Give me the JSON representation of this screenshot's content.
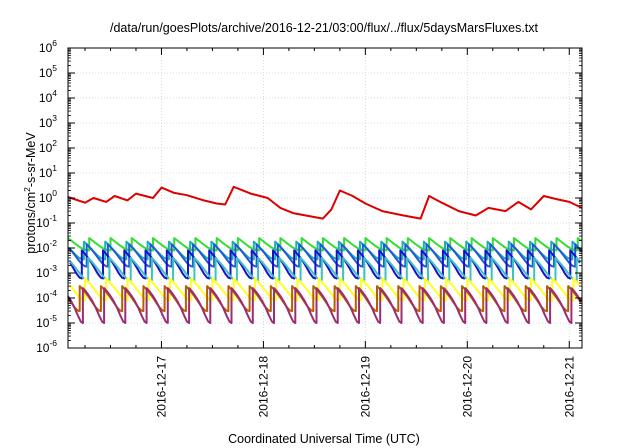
{
  "chart_data": {
    "type": "line",
    "title": "/data/run/goesPlots/archive/2016-12-21/03:00/flux/../flux/5daysMarsFluxes.txt",
    "xlabel": "Coordinated Universal Time (UTC)",
    "ylabel": {
      "a": "protons/cm",
      "sup": "2",
      "b": "-s-sr-MeV"
    },
    "yscale": "log",
    "ylim": [
      1e-06,
      1000000.0
    ],
    "y_ticks": [
      {
        "base": "10",
        "exp": "-6",
        "value": 1e-06
      },
      {
        "base": "10",
        "exp": "-5",
        "value": 1e-05
      },
      {
        "base": "10",
        "exp": "-4",
        "value": 0.0001
      },
      {
        "base": "10",
        "exp": "-3",
        "value": 0.001
      },
      {
        "base": "10",
        "exp": "-2",
        "value": 0.01
      },
      {
        "base": "10",
        "exp": "-1",
        "value": 0.1
      },
      {
        "base": "10",
        "exp": "0",
        "value": 1
      },
      {
        "base": "10",
        "exp": "1",
        "value": 10
      },
      {
        "base": "10",
        "exp": "2",
        "value": 100
      },
      {
        "base": "10",
        "exp": "3",
        "value": 1000
      },
      {
        "base": "10",
        "exp": "4",
        "value": 10000
      },
      {
        "base": "10",
        "exp": "5",
        "value": 100000
      },
      {
        "base": "10",
        "exp": "6",
        "value": 1000000
      }
    ],
    "xlim": [
      "2016-12-16 02:00",
      "2016-12-21 03:00"
    ],
    "x_ticks": [
      {
        "label": "2016-12-17",
        "t": "2016-12-17 00:00"
      },
      {
        "label": "2016-12-18",
        "t": "2016-12-18 00:00"
      },
      {
        "label": "2016-12-19",
        "t": "2016-12-19 00:00"
      },
      {
        "label": "2016-12-20",
        "t": "2016-12-20 00:00"
      },
      {
        "label": "2016-12-21",
        "t": "2016-12-21 00:00"
      }
    ],
    "grid": true,
    "legend": "none",
    "series": [
      {
        "color": "#dd0000",
        "pattern": "trend",
        "points": [
          [
            "2016-12-16 02:00",
            1.1
          ],
          [
            "2016-12-16 06:00",
            0.65
          ],
          [
            "2016-12-16 08:00",
            1.0
          ],
          [
            "2016-12-16 11:00",
            0.7
          ],
          [
            "2016-12-16 13:00",
            1.2
          ],
          [
            "2016-12-16 16:00",
            0.8
          ],
          [
            "2016-12-16 18:00",
            1.5
          ],
          [
            "2016-12-16 22:00",
            1.0
          ],
          [
            "2016-12-17 00:00",
            2.6
          ],
          [
            "2016-12-17 03:00",
            1.6
          ],
          [
            "2016-12-17 06:00",
            1.3
          ],
          [
            "2016-12-17 10:00",
            0.8
          ],
          [
            "2016-12-17 13:00",
            0.6
          ],
          [
            "2016-12-17 15:00",
            0.55
          ],
          [
            "2016-12-17 17:00",
            2.8
          ],
          [
            "2016-12-17 21:00",
            1.5
          ],
          [
            "2016-12-18 01:00",
            1.0
          ],
          [
            "2016-12-18 04:00",
            0.4
          ],
          [
            "2016-12-18 07:00",
            0.25
          ],
          [
            "2016-12-18 10:00",
            0.2
          ],
          [
            "2016-12-18 14:00",
            0.15
          ],
          [
            "2016-12-18 16:00",
            0.35
          ],
          [
            "2016-12-18 18:00",
            2.0
          ],
          [
            "2016-12-18 21:00",
            1.2
          ],
          [
            "2016-12-19 00:00",
            0.6
          ],
          [
            "2016-12-19 04:00",
            0.3
          ],
          [
            "2016-12-19 09:00",
            0.2
          ],
          [
            "2016-12-19 13:00",
            0.15
          ],
          [
            "2016-12-19 15:00",
            1.2
          ],
          [
            "2016-12-19 18:00",
            0.65
          ],
          [
            "2016-12-19 22:00",
            0.3
          ],
          [
            "2016-12-20 02:00",
            0.2
          ],
          [
            "2016-12-20 05:00",
            0.4
          ],
          [
            "2016-12-20 09:00",
            0.3
          ],
          [
            "2016-12-20 12:00",
            0.7
          ],
          [
            "2016-12-20 15:00",
            0.35
          ],
          [
            "2016-12-20 18:00",
            1.2
          ],
          [
            "2016-12-20 21:00",
            0.9
          ],
          [
            "2016-12-21 00:00",
            0.7
          ],
          [
            "2016-12-21 03:00",
            0.4
          ]
        ]
      },
      {
        "color": "#33dd33",
        "pattern": "sawtooth",
        "high": 0.025,
        "low": 0.008,
        "phase": 0
      },
      {
        "color": "#20b0b0",
        "pattern": "sawtooth",
        "high": 0.018,
        "low": 0.0035,
        "phase": 0.25
      },
      {
        "color": "#1f5bd6",
        "pattern": "sawtooth",
        "high": 0.014,
        "low": 0.0018,
        "phase": 0.12
      },
      {
        "color": "#1414c8",
        "pattern": "sawtooth",
        "high": 0.008,
        "low": 0.0006,
        "phase": 0.35
      },
      {
        "color": "#40c0c0",
        "pattern": "sawtooth",
        "high": 0.004,
        "low": 0.0005,
        "phase": 0.05
      },
      {
        "color": "#ffff22",
        "pattern": "sawtooth",
        "high": 0.0006,
        "low": 8e-05,
        "phase": 0.2
      },
      {
        "color": "#b85c00",
        "pattern": "sawtooth",
        "high": 0.0003,
        "low": 3e-05,
        "phase": 0.45
      },
      {
        "color": "#9b2d72",
        "pattern": "sawtooth",
        "high": 0.00025,
        "low": 1e-05,
        "phase": 0.3
      }
    ],
    "sawtooth_period_hours": 5
  }
}
